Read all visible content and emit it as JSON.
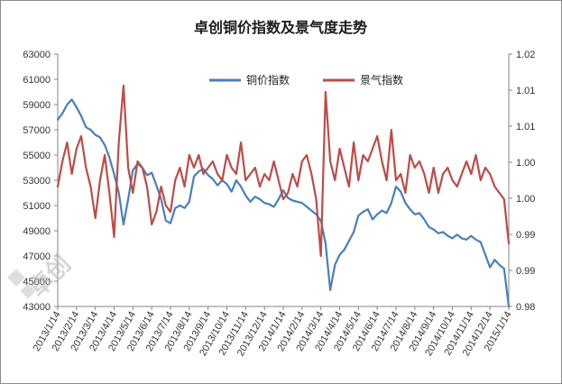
{
  "chart_data": {
    "type": "line",
    "title": "卓创铜价指数及景气度走势",
    "x_labels": [
      "2013/1/14",
      "2013/2/14",
      "2013/3/14",
      "2013/4/14",
      "2013/5/14",
      "2013/6/14",
      "2013/7/14",
      "2013/8/14",
      "2013/9/14",
      "2013/10/14",
      "2013/11/14",
      "2013/12/14",
      "2014/1/14",
      "2014/2/14",
      "2014/3/14",
      "2014/4/14",
      "2014/5/14",
      "2014/6/14",
      "2014/7/14",
      "2014/8/14",
      "2014/9/14",
      "2014/10/14",
      "2014/11/14",
      "2014/12/14",
      "2015/1/14"
    ],
    "y_left": {
      "min": 43000,
      "max": 63000,
      "ticks": [
        "43000",
        "45000",
        "47000",
        "49000",
        "51000",
        "53000",
        "55000",
        "57000",
        "59000",
        "61000",
        "63000"
      ]
    },
    "y_right": {
      "min": 0.98,
      "max": 1.02,
      "ticks": [
        "0.98",
        "0.99",
        "0.99",
        "1.00",
        "1.00",
        "1.01",
        "1.01",
        "1.02"
      ]
    },
    "legend_position": "top",
    "grid": false,
    "series": [
      {
        "name": "铜价指数",
        "axis": "left",
        "color": "#4a7ebb",
        "x": [
          0,
          0.25,
          0.5,
          0.75,
          1,
          1.25,
          1.5,
          1.75,
          2,
          2.25,
          2.5,
          2.75,
          3,
          3.25,
          3.5,
          3.75,
          4,
          4.25,
          4.5,
          4.75,
          5,
          5.25,
          5.5,
          5.75,
          6,
          6.25,
          6.5,
          6.75,
          7,
          7.25,
          7.5,
          7.75,
          8,
          8.25,
          8.5,
          8.75,
          9,
          9.25,
          9.5,
          9.75,
          10,
          10.25,
          10.5,
          10.75,
          11,
          11.25,
          11.5,
          11.75,
          12,
          12.25,
          12.5,
          12.75,
          13,
          13.25,
          13.5,
          13.75,
          14,
          14.25,
          14.5,
          14.75,
          15,
          15.25,
          15.5,
          15.75,
          16,
          16.25,
          16.5,
          16.75,
          17,
          17.25,
          17.5,
          17.75,
          18,
          18.25,
          18.5,
          18.75,
          19,
          19.25,
          19.5,
          19.75,
          20,
          20.25,
          20.5,
          20.75,
          21,
          21.25,
          21.5,
          21.75,
          22,
          22.25,
          22.5,
          22.75,
          23,
          23.25,
          23.5,
          23.75,
          24
        ],
        "values": [
          57800,
          58300,
          59000,
          59400,
          58800,
          58100,
          57200,
          57000,
          56600,
          56400,
          55800,
          54800,
          53500,
          52000,
          49500,
          51500,
          53800,
          54300,
          54000,
          53400,
          53600,
          52600,
          51500,
          49800,
          49600,
          50800,
          51000,
          50800,
          51300,
          53300,
          53700,
          53900,
          53400,
          53100,
          52600,
          53000,
          52700,
          52100,
          53000,
          52500,
          51800,
          51300,
          51700,
          51500,
          51200,
          51100,
          50900,
          51500,
          52200,
          51600,
          51400,
          51300,
          51200,
          50900,
          50600,
          50300,
          49800,
          48000,
          44300,
          46300,
          47100,
          47500,
          48200,
          48900,
          50200,
          50500,
          50700,
          49900,
          50300,
          50600,
          50400,
          51200,
          52500,
          52100,
          51200,
          50700,
          50300,
          50400,
          49900,
          49300,
          49100,
          48800,
          48900,
          48600,
          48400,
          48700,
          48400,
          48300,
          48600,
          48300,
          48100,
          47100,
          46100,
          46700,
          46300,
          46000,
          43000
        ]
      },
      {
        "name": "景气指数",
        "axis": "right",
        "color": "#be4b48",
        "x": [
          0,
          0.25,
          0.5,
          0.75,
          1,
          1.25,
          1.5,
          1.75,
          2,
          2.25,
          2.5,
          2.75,
          3,
          3.25,
          3.5,
          3.75,
          4,
          4.25,
          4.5,
          4.75,
          5,
          5.25,
          5.5,
          5.75,
          6,
          6.25,
          6.5,
          6.75,
          7,
          7.25,
          7.5,
          7.75,
          8,
          8.25,
          8.5,
          8.75,
          9,
          9.25,
          9.5,
          9.75,
          10,
          10.25,
          10.5,
          10.75,
          11,
          11.25,
          11.5,
          11.75,
          12,
          12.25,
          12.5,
          12.75,
          13,
          13.25,
          13.5,
          13.75,
          14,
          14.25,
          14.5,
          14.75,
          15,
          15.25,
          15.5,
          15.75,
          16,
          16.25,
          16.5,
          16.75,
          17,
          17.25,
          17.5,
          17.75,
          18,
          18.25,
          18.5,
          18.75,
          19,
          19.25,
          19.5,
          19.75,
          20,
          20.25,
          20.5,
          20.75,
          21,
          21.25,
          21.5,
          21.75,
          22,
          22.25,
          22.5,
          22.75,
          23,
          23.25,
          23.5,
          23.75,
          24
        ],
        "values": [
          0.999,
          1.003,
          1.006,
          1.001,
          1.005,
          1.007,
          1.002,
          0.999,
          0.994,
          1.0,
          1.004,
          0.998,
          0.991,
          1.006,
          1.015,
          1.002,
          0.998,
          1.003,
          1.002,
          0.999,
          0.993,
          0.995,
          0.999,
          0.996,
          0.995,
          1.0,
          1.002,
          0.999,
          1.004,
          1.002,
          1.004,
          1.001,
          1.002,
          1.003,
          1.001,
          1.0,
          1.004,
          1.002,
          1.001,
          1.006,
          1.0,
          1.001,
          1.002,
          0.999,
          1.001,
          1.0,
          1.003,
          1.0,
          0.997,
          0.998,
          1.001,
          0.999,
          1.003,
          1.004,
          1.001,
          0.997,
          0.988,
          1.014,
          1.003,
          1.0,
          1.005,
          1.002,
          0.999,
          1.006,
          1.0,
          1.004,
          1.003,
          1.005,
          1.007,
          1.003,
          1.0,
          1.008,
          1.0,
          1.001,
          0.998,
          1.004,
          1.002,
          1.003,
          1.001,
          0.998,
          1.002,
          0.998,
          1.001,
          1.002,
          1.0,
          0.999,
          1.001,
          1.003,
          1.001,
          1.004,
          1.0,
          1.002,
          1.001,
          0.999,
          0.998,
          0.997,
          0.99
        ]
      }
    ]
  },
  "watermark": "卓创",
  "colors": {
    "copper": "#4a7ebb",
    "climate": "#be4b48",
    "axis": "#868686"
  }
}
